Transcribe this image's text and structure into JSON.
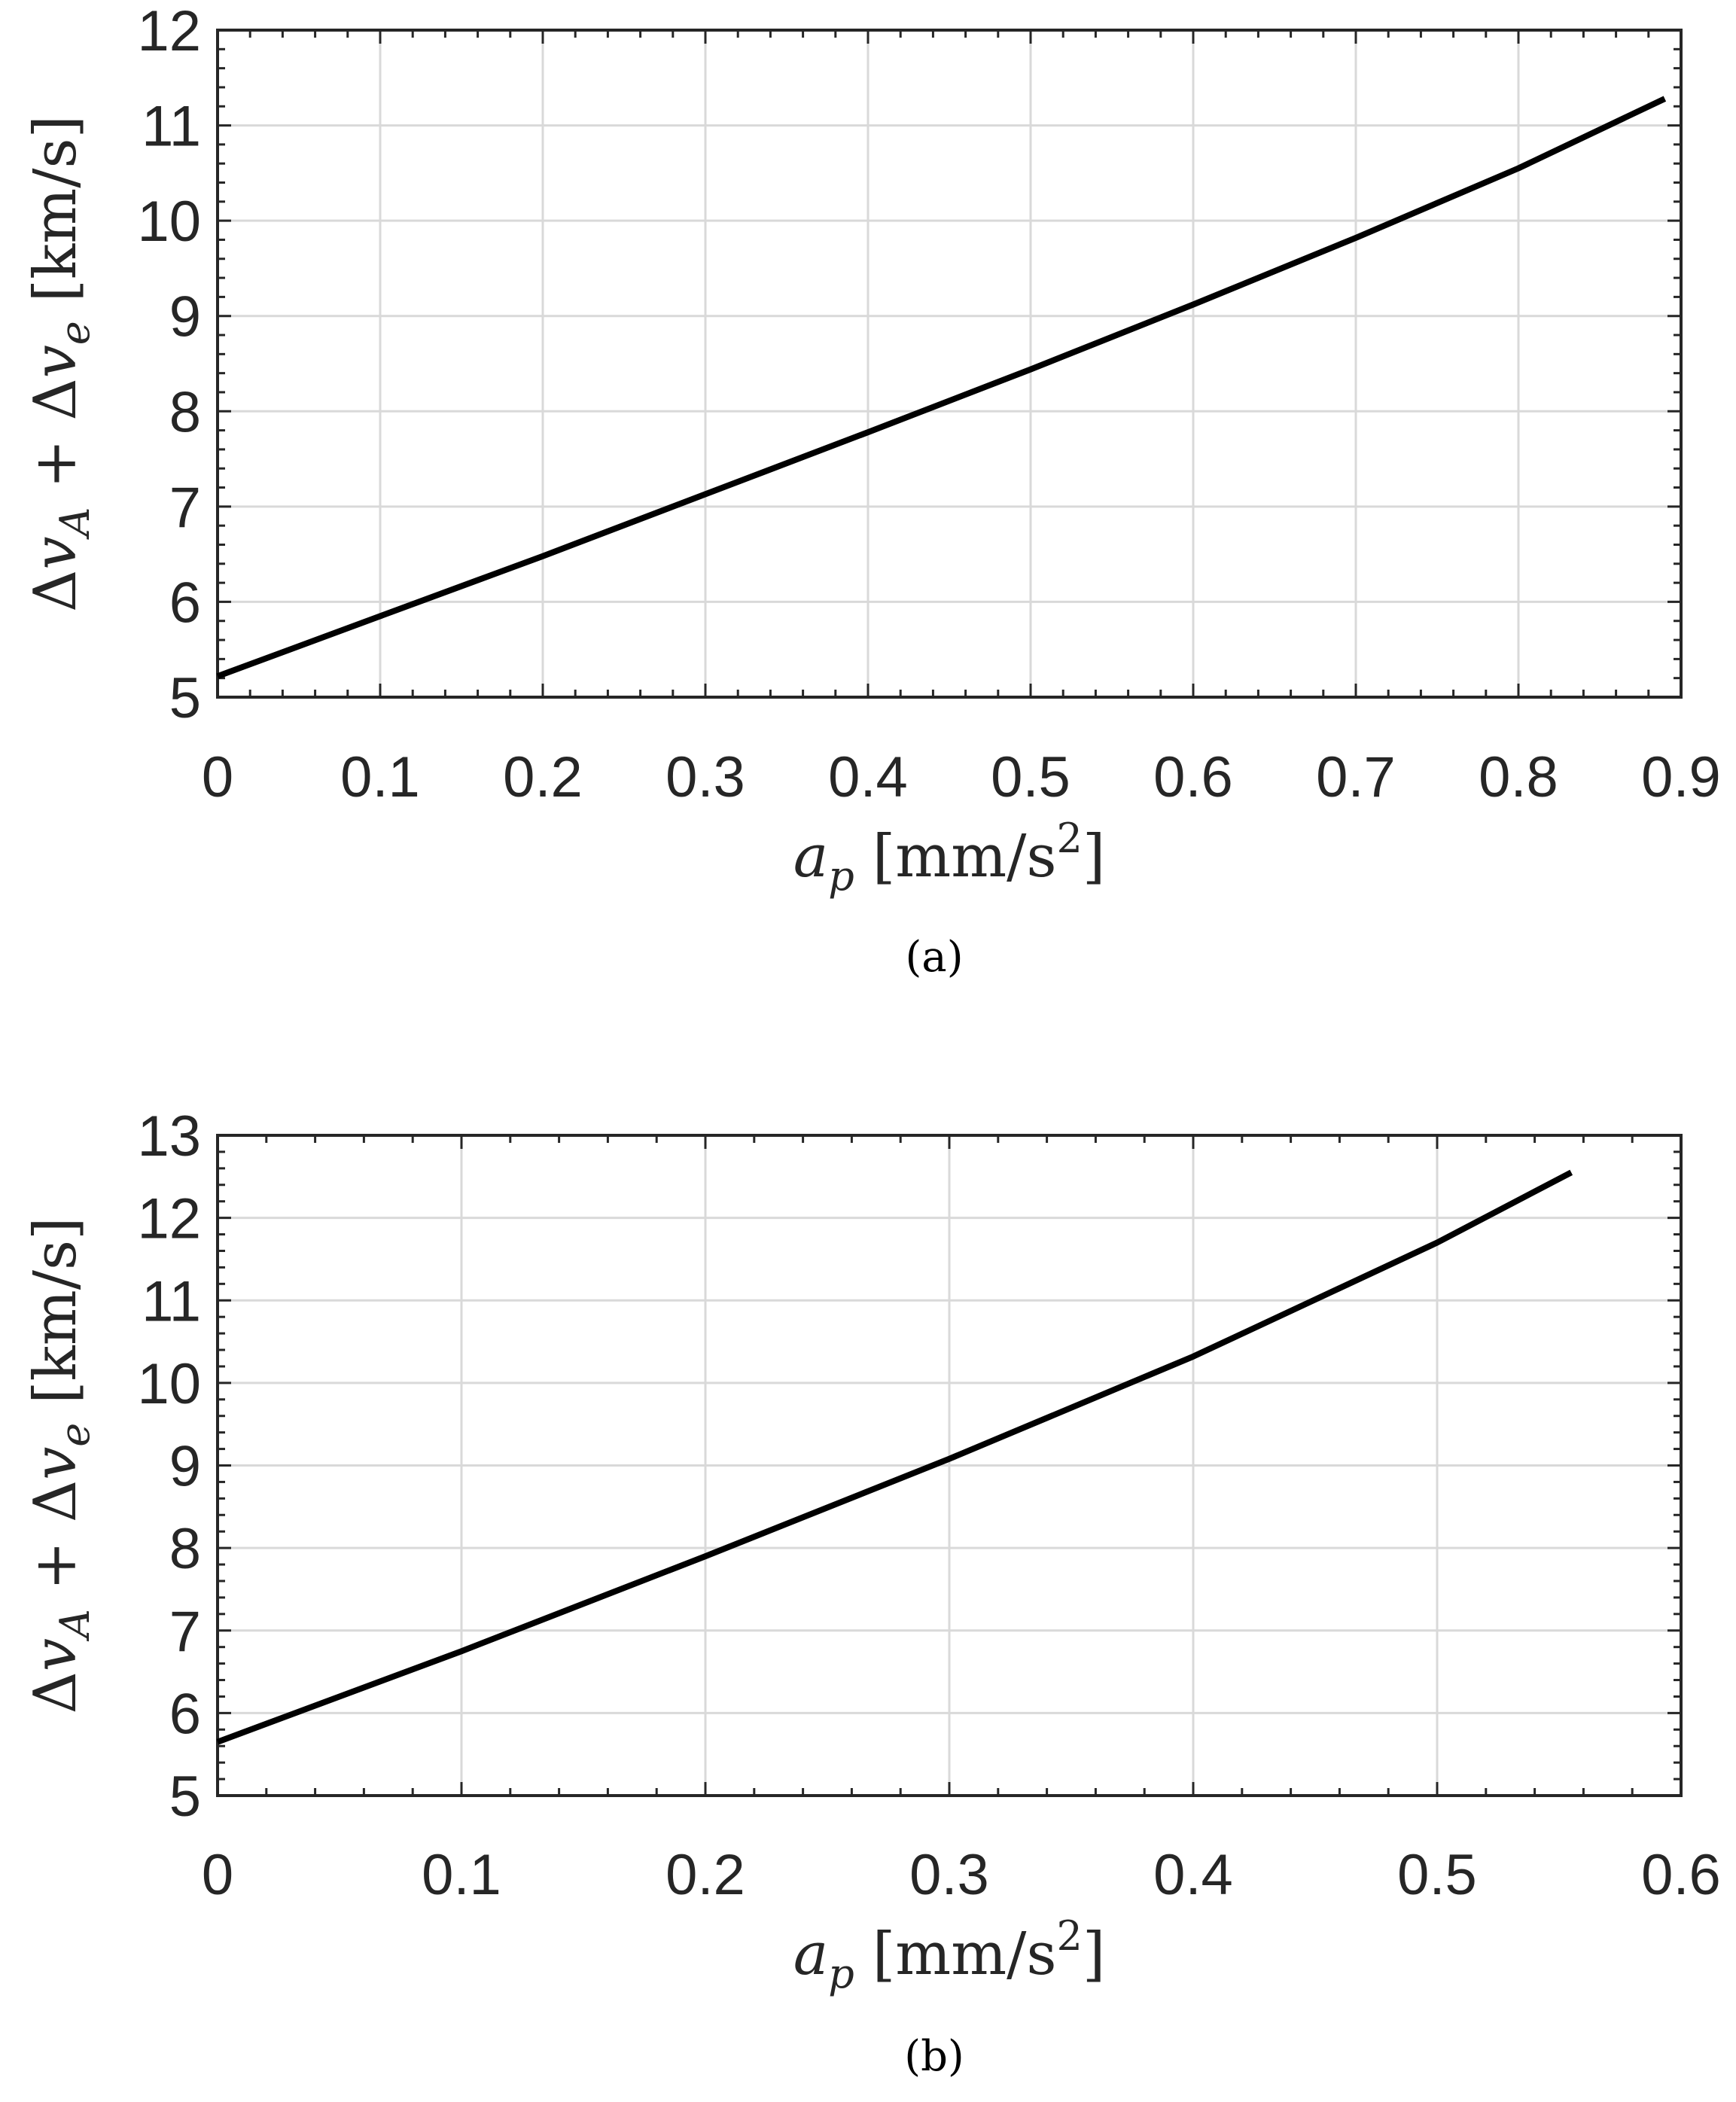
{
  "chart_data": [
    {
      "type": "line",
      "caption": "(a)",
      "xlabel": "a_p [mm/s^2]",
      "xlabel_parts": {
        "var": "a",
        "sub": "p",
        "unit": "[mm/s",
        "sup": "2",
        "close": "]"
      },
      "ylabel": "Δv_A + Δv_e [km/s]",
      "ylabel_parts": {
        "d1": "Δ",
        "v1": "v",
        "s1": "A",
        "op": " + ",
        "d2": "Δ",
        "v2": "v",
        "s2": "e",
        "unit": " [km/s]"
      },
      "xlim": [
        0,
        0.9
      ],
      "ylim": [
        5,
        12
      ],
      "xticks": [
        0,
        0.1,
        0.2,
        0.3,
        0.4,
        0.5,
        0.6,
        0.7,
        0.8,
        0.9
      ],
      "xticklabels": [
        "0",
        "0.1",
        "0.2",
        "0.3",
        "0.4",
        "0.5",
        "0.6",
        "0.7",
        "0.8",
        "0.9"
      ],
      "yticks": [
        5,
        6,
        7,
        8,
        9,
        10,
        11,
        12
      ],
      "yticklabels": [
        "5",
        "6",
        "7",
        "8",
        "9",
        "10",
        "11",
        "12"
      ],
      "grid": true,
      "series": [
        {
          "x": [
            0,
            0.1,
            0.2,
            0.3,
            0.4,
            0.5,
            0.6,
            0.7,
            0.8,
            0.89
          ],
          "y": [
            5.22,
            5.85,
            6.48,
            7.13,
            7.78,
            8.44,
            9.12,
            9.82,
            10.55,
            11.28
          ]
        }
      ]
    },
    {
      "type": "line",
      "caption": "(b)",
      "xlabel": "a_p [mm/s^2]",
      "xlabel_parts": {
        "var": "a",
        "sub": "p",
        "unit": "[mm/s",
        "sup": "2",
        "close": "]"
      },
      "ylabel": "Δv_A + Δv_e [km/s]",
      "ylabel_parts": {
        "d1": "Δ",
        "v1": "v",
        "s1": "A",
        "op": " + ",
        "d2": "Δ",
        "v2": "v",
        "s2": "e",
        "unit": " [km/s]"
      },
      "xlim": [
        0,
        0.6
      ],
      "ylim": [
        5,
        13
      ],
      "xticks": [
        0,
        0.1,
        0.2,
        0.3,
        0.4,
        0.5,
        0.6
      ],
      "xticklabels": [
        "0",
        "0.1",
        "0.2",
        "0.3",
        "0.4",
        "0.5",
        "0.6"
      ],
      "yticks": [
        5,
        6,
        7,
        8,
        9,
        10,
        11,
        12,
        13
      ],
      "yticklabels": [
        "5",
        "6",
        "7",
        "8",
        "9",
        "10",
        "11",
        "12",
        "13"
      ],
      "grid": true,
      "series": [
        {
          "x": [
            0,
            0.1,
            0.2,
            0.3,
            0.4,
            0.5,
            0.555
          ],
          "y": [
            5.65,
            6.75,
            7.9,
            9.08,
            10.32,
            11.7,
            12.55
          ]
        }
      ]
    }
  ]
}
